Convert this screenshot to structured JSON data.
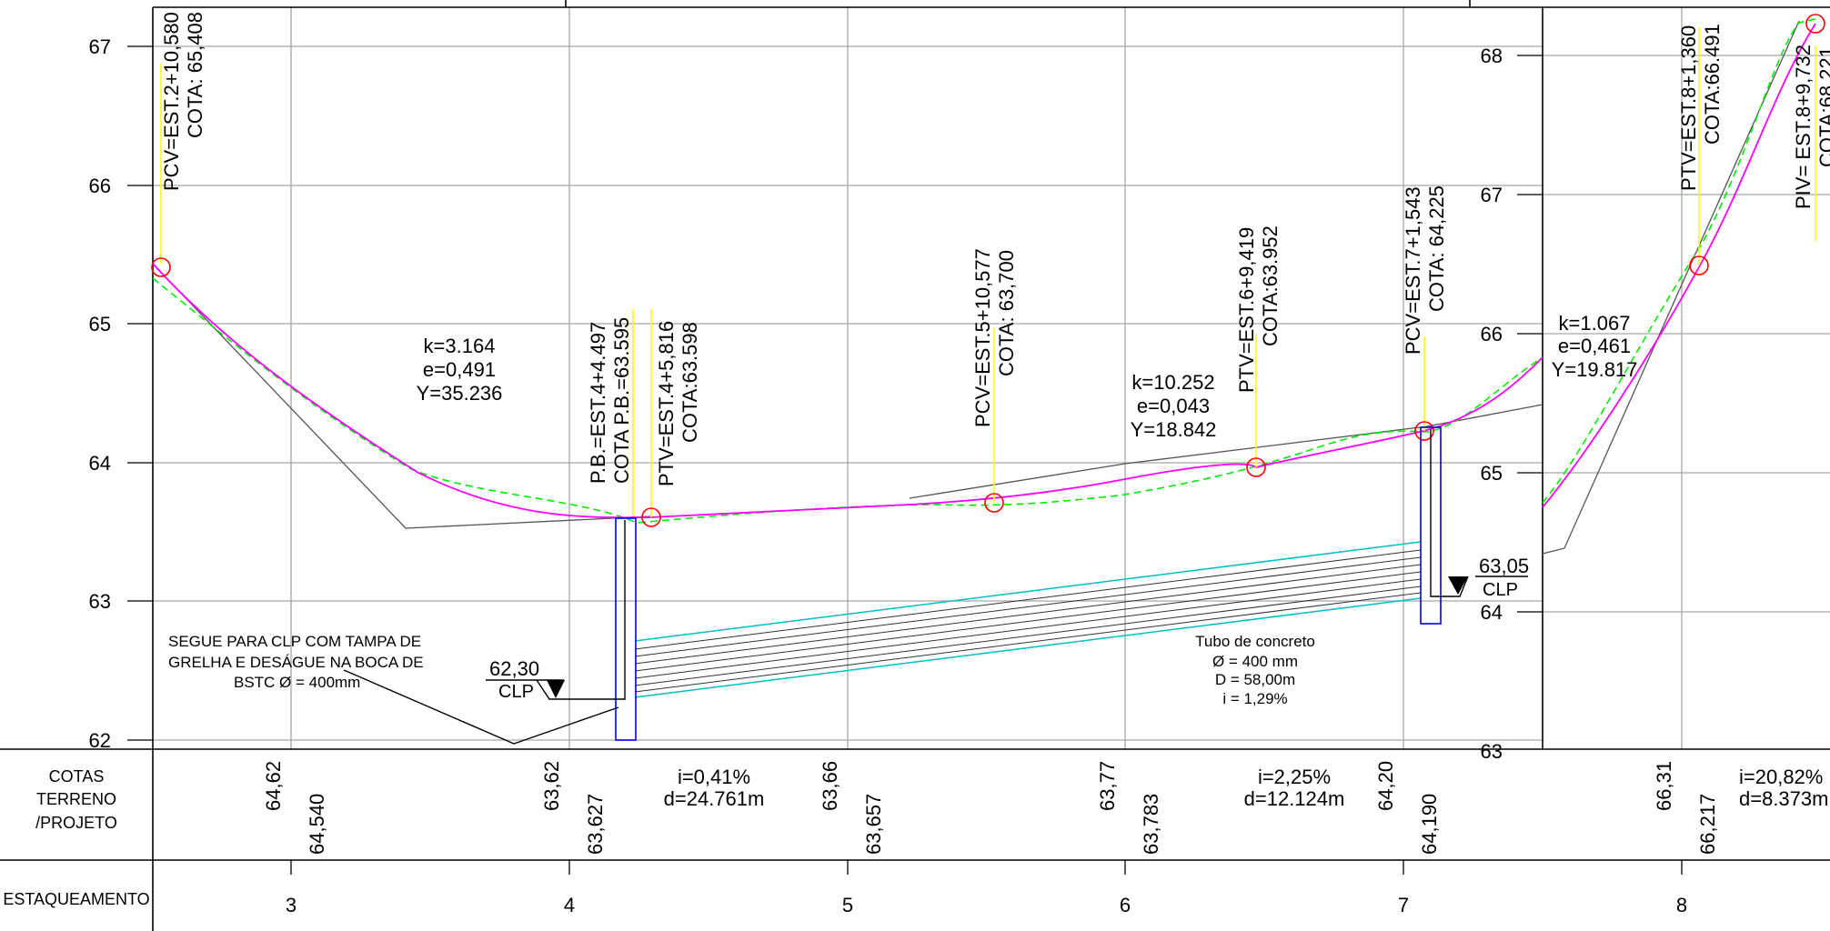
{
  "axis_left": [
    "67",
    "66",
    "65",
    "64",
    "63",
    "62"
  ],
  "axis_right": [
    "68",
    "67",
    "66",
    "65",
    "64",
    "63"
  ],
  "stations": [
    "3",
    "4",
    "5",
    "6",
    "7",
    "8"
  ],
  "row_labels": {
    "cotas": [
      "COTAS",
      "TERRENO",
      "/PROJETO"
    ],
    "estaqueamento": "ESTAQUEAMENTO"
  },
  "callouts": {
    "pcv1": [
      "PCV=EST.2+10,580",
      "COTA: 65,408"
    ],
    "pb": [
      "P.B.=EST.4+4.497",
      "COTA P.B.=63.595"
    ],
    "ptv1": [
      "PTV=EST.4+5,816",
      "COTA:63.598"
    ],
    "pcv2": [
      "PCV=EST.5+10,577",
      "COTA: 63,700"
    ],
    "ptv2": [
      "PTV=EST.6+9,419",
      "COTA:63.952"
    ],
    "pcv3": [
      "PCV=EST.7+1,543",
      "COTA: 64,225"
    ],
    "ptv3": [
      "PTV=EST.8+1,360",
      "COTA:66.491"
    ],
    "piv": [
      "PIV= EST.8+9,732",
      "COTA:68.221"
    ]
  },
  "curves": {
    "c1": [
      "k=3.164",
      "e=0,491",
      "Y=35.236"
    ],
    "c2": [
      "k=10.252",
      "e=0,043",
      "Y=18.842"
    ],
    "c3": [
      "k=1.067",
      "e=0,461",
      "Y=19.817"
    ]
  },
  "notes": {
    "clp_note": [
      "SEGUE PARA CLP COM TAMPA DE",
      "GRELHA E DESÁGUE NA BOCA DE",
      "BSTC Ø = 400mm"
    ],
    "pipe_note": [
      "Tubo de concreto",
      "Ø = 400 mm",
      "D = 58,00m",
      "i = 1,29%"
    ],
    "clp_left_value": "62,30",
    "clp_right_value": "63,05",
    "clp_label": "CLP"
  },
  "cota_values": {
    "terreno": [
      "64,62",
      "63,62",
      "63,66",
      "63,77",
      "64,20",
      "66,31"
    ],
    "projeto": [
      "64,540",
      "63,627",
      "63,657",
      "63,783",
      "64,190",
      "66,217"
    ]
  },
  "slopes": [
    [
      "i=0,41%",
      "d=24.761m"
    ],
    [
      "i=2,25%",
      "d=12.124m"
    ],
    [
      "i=20,82%",
      "d=8.373m"
    ]
  ],
  "colors": {
    "profile_project": "#ff00ff",
    "terrain": "#00ee00",
    "pipe": "#00c0c0",
    "manhole": "#0000ff",
    "markers": "#ff0000",
    "leaders": "#ffff00"
  }
}
